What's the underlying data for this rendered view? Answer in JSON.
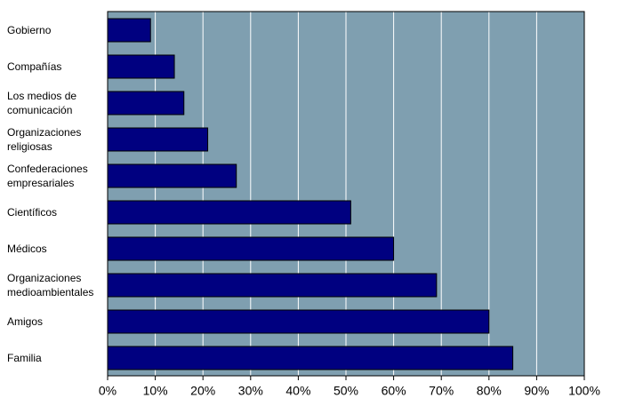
{
  "chart_data": {
    "type": "barh",
    "categories": [
      "Gobierno",
      "Compañías",
      "Los medios de comunicación",
      "Organizaciones religiosas",
      "Confederaciones empresariales",
      "Científicos",
      "Médicos",
      "Organizaciones medioambientales",
      "Amigos",
      "Familia"
    ],
    "values": [
      9,
      14,
      16,
      21,
      27,
      51,
      60,
      69,
      80,
      85
    ],
    "color": "#000080",
    "xlim": [
      0,
      100
    ],
    "xticks": [
      {
        "value": 0,
        "label": "0%"
      },
      {
        "value": 10,
        "label": "10%"
      },
      {
        "value": 20,
        "label": "20%"
      },
      {
        "value": 30,
        "label": "30%"
      },
      {
        "value": 40,
        "label": "40%"
      },
      {
        "value": 50,
        "label": "50%"
      },
      {
        "value": 60,
        "label": "60%"
      },
      {
        "value": 70,
        "label": "70%"
      },
      {
        "value": 80,
        "label": "80%"
      },
      {
        "value": 90,
        "label": "90%"
      },
      {
        "value": 100,
        "label": "100%"
      }
    ],
    "grid": true
  }
}
